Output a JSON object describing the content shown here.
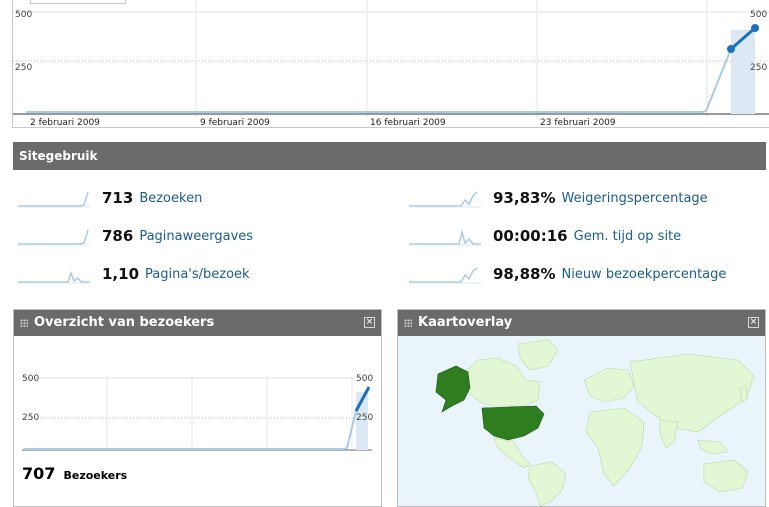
{
  "top_chart": {
    "y_ticks": [
      "500",
      "250"
    ],
    "y_ticks_right": [
      "500",
      "250"
    ],
    "dates": [
      "2 februari 2009",
      "9 februari 2009",
      "16 februari 2009",
      "23 februari 2009"
    ]
  },
  "site_usage": {
    "title": "Sitegebruik",
    "metrics": [
      {
        "value": "713",
        "label": "Bezoeken"
      },
      {
        "value": "786",
        "label": "Paginaweergaves"
      },
      {
        "value": "1,10",
        "label": "Pagina's/bezoek"
      },
      {
        "value": "93,83%",
        "label": "Weigeringspercentage"
      },
      {
        "value": "00:00:16",
        "label": "Gem. tijd op site"
      },
      {
        "value": "98,88%",
        "label": "Nieuw bezoekpercentage"
      }
    ]
  },
  "visitors_overview": {
    "title": "Overzicht van bezoekers",
    "y_ticks": [
      "500",
      "250"
    ],
    "y_ticks_right": [
      "500",
      "250"
    ],
    "count": "707",
    "count_label": "Bezoekers"
  },
  "map_overlay": {
    "title": "Kaartoverlay"
  },
  "colors": {
    "accent_line": "#1a6fc0",
    "light_line": "#a9cbe6",
    "header_bg": "#6b6b6b",
    "link": "#1c5d8a",
    "map_ocean": "#eaf4fb",
    "map_land": "#e4f7d4",
    "map_highlight": "#2e7d1e"
  }
}
